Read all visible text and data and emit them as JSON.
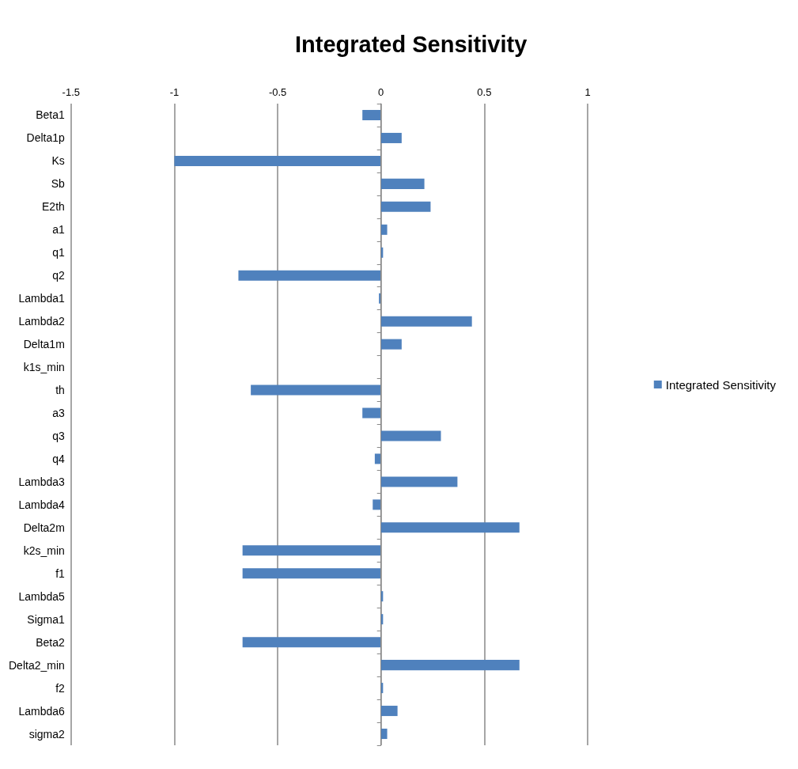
{
  "chart_data": {
    "type": "bar",
    "orientation": "horizontal",
    "title": "Integrated Sensitivity",
    "categories": [
      "Beta1",
      "Delta1p",
      "Ks",
      "Sb",
      "E2th",
      "a1",
      "q1",
      "q2",
      "Lambda1",
      "Lambda2",
      "Delta1m",
      "k1s_min",
      "th",
      "a3",
      "q3",
      "q4",
      "Lambda3",
      "Lambda4",
      "Delta2m",
      "k2s_min",
      "f1",
      "Lambda5",
      "Sigma1",
      "Beta2",
      "Delta2_min",
      "f2",
      "Lambda6",
      "sigma2"
    ],
    "series": [
      {
        "name": "Integrated Sensitivity",
        "color": "#4f81bd",
        "values": [
          -0.09,
          0.1,
          -1.0,
          0.21,
          0.24,
          0.03,
          0.01,
          -0.69,
          -0.01,
          0.44,
          0.1,
          0,
          -0.63,
          -0.09,
          0.29,
          -0.03,
          0.37,
          -0.04,
          0.67,
          -0.67,
          -0.67,
          0.01,
          0.01,
          -0.67,
          0.67,
          0.01,
          0.08,
          0.03
        ]
      }
    ],
    "xlim": [
      -1.5,
      1
    ],
    "xticks": [
      -1.5,
      -1,
      -0.5,
      0,
      0.5,
      1
    ],
    "grid": "x",
    "legend": "right"
  }
}
